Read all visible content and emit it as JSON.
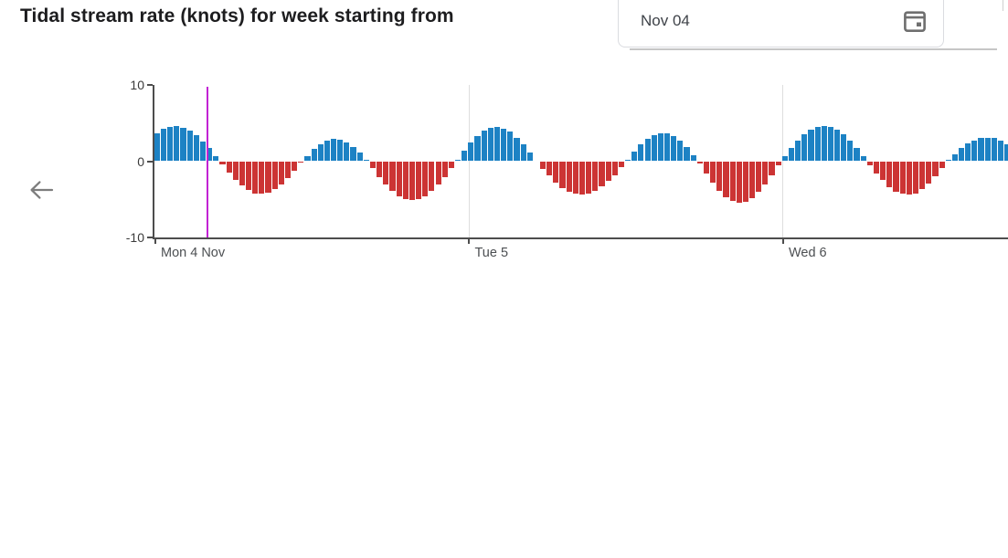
{
  "header": {
    "title": "Tidal stream rate (knots) for week starting from",
    "date_input": {
      "value": "Nov 04",
      "icon": "calendar-icon"
    }
  },
  "nav": {
    "prev_week_icon": "arrow-left-icon"
  },
  "chart_data": {
    "type": "bar",
    "title": "Tidal stream rate (knots) for week starting from",
    "ylabel": "knots",
    "ylim": [
      -10,
      10
    ],
    "y_ticks": [
      10,
      0,
      -10
    ],
    "x_ticks": [
      {
        "hour": 0,
        "label": "Mon 4 Nov"
      },
      {
        "hour": 24,
        "label": "Tue 5"
      },
      {
        "hour": 48,
        "label": "Wed 6"
      }
    ],
    "start_hour": 0,
    "interval_hours": 0.5,
    "series": [
      {
        "name": "Tidal stream rate",
        "values": [
          3.7,
          4.2,
          4.5,
          4.6,
          4.4,
          4.0,
          3.4,
          2.6,
          1.7,
          0.6,
          -0.4,
          -1.5,
          -2.4,
          -3.2,
          -3.8,
          -4.2,
          -4.3,
          -4.1,
          -3.7,
          -3.1,
          -2.2,
          -1.3,
          -0.2,
          0.7,
          1.6,
          2.2,
          2.7,
          2.9,
          2.8,
          2.4,
          1.8,
          1.1,
          0.2,
          -0.9,
          -2.1,
          -3.1,
          -3.9,
          -4.6,
          -5.0,
          -5.1,
          -5.0,
          -4.6,
          -3.9,
          -3.1,
          -2.1,
          -0.9,
          0.2,
          1.4,
          2.4,
          3.3,
          4.0,
          4.4,
          4.5,
          4.3,
          3.9,
          3.1,
          2.2,
          1.1,
          0.0,
          -1.0,
          -1.9,
          -2.8,
          -3.5,
          -4.0,
          -4.3,
          -4.4,
          -4.3,
          -3.9,
          -3.3,
          -2.6,
          -1.8,
          -0.8,
          0.2,
          1.2,
          2.2,
          2.9,
          3.4,
          3.7,
          3.6,
          3.3,
          2.7,
          1.8,
          0.8,
          -0.3,
          -1.6,
          -2.8,
          -3.9,
          -4.7,
          -5.2,
          -5.4,
          -5.3,
          -4.8,
          -4.0,
          -3.0,
          -1.8,
          -0.5,
          0.7,
          1.7,
          2.7,
          3.5,
          4.1,
          4.5,
          4.6,
          4.5,
          4.1,
          3.5,
          2.7,
          1.7,
          0.7,
          -0.5,
          -1.6,
          -2.5,
          -3.4,
          -4.0,
          -4.3,
          -4.4,
          -4.2,
          -3.7,
          -2.9,
          -2.0,
          -0.9,
          0.2,
          0.9,
          1.7,
          2.3,
          2.7,
          3.0,
          3.1,
          3.0,
          2.7,
          2.2
        ]
      }
    ],
    "positive_color": "#1d82c4",
    "negative_color": "#cc3434",
    "now_line": {
      "hour": 4,
      "color": "#c222d4"
    },
    "axis_color": "#4d4d4d",
    "grid_color": "#dedede",
    "grid": true,
    "legend": false
  }
}
